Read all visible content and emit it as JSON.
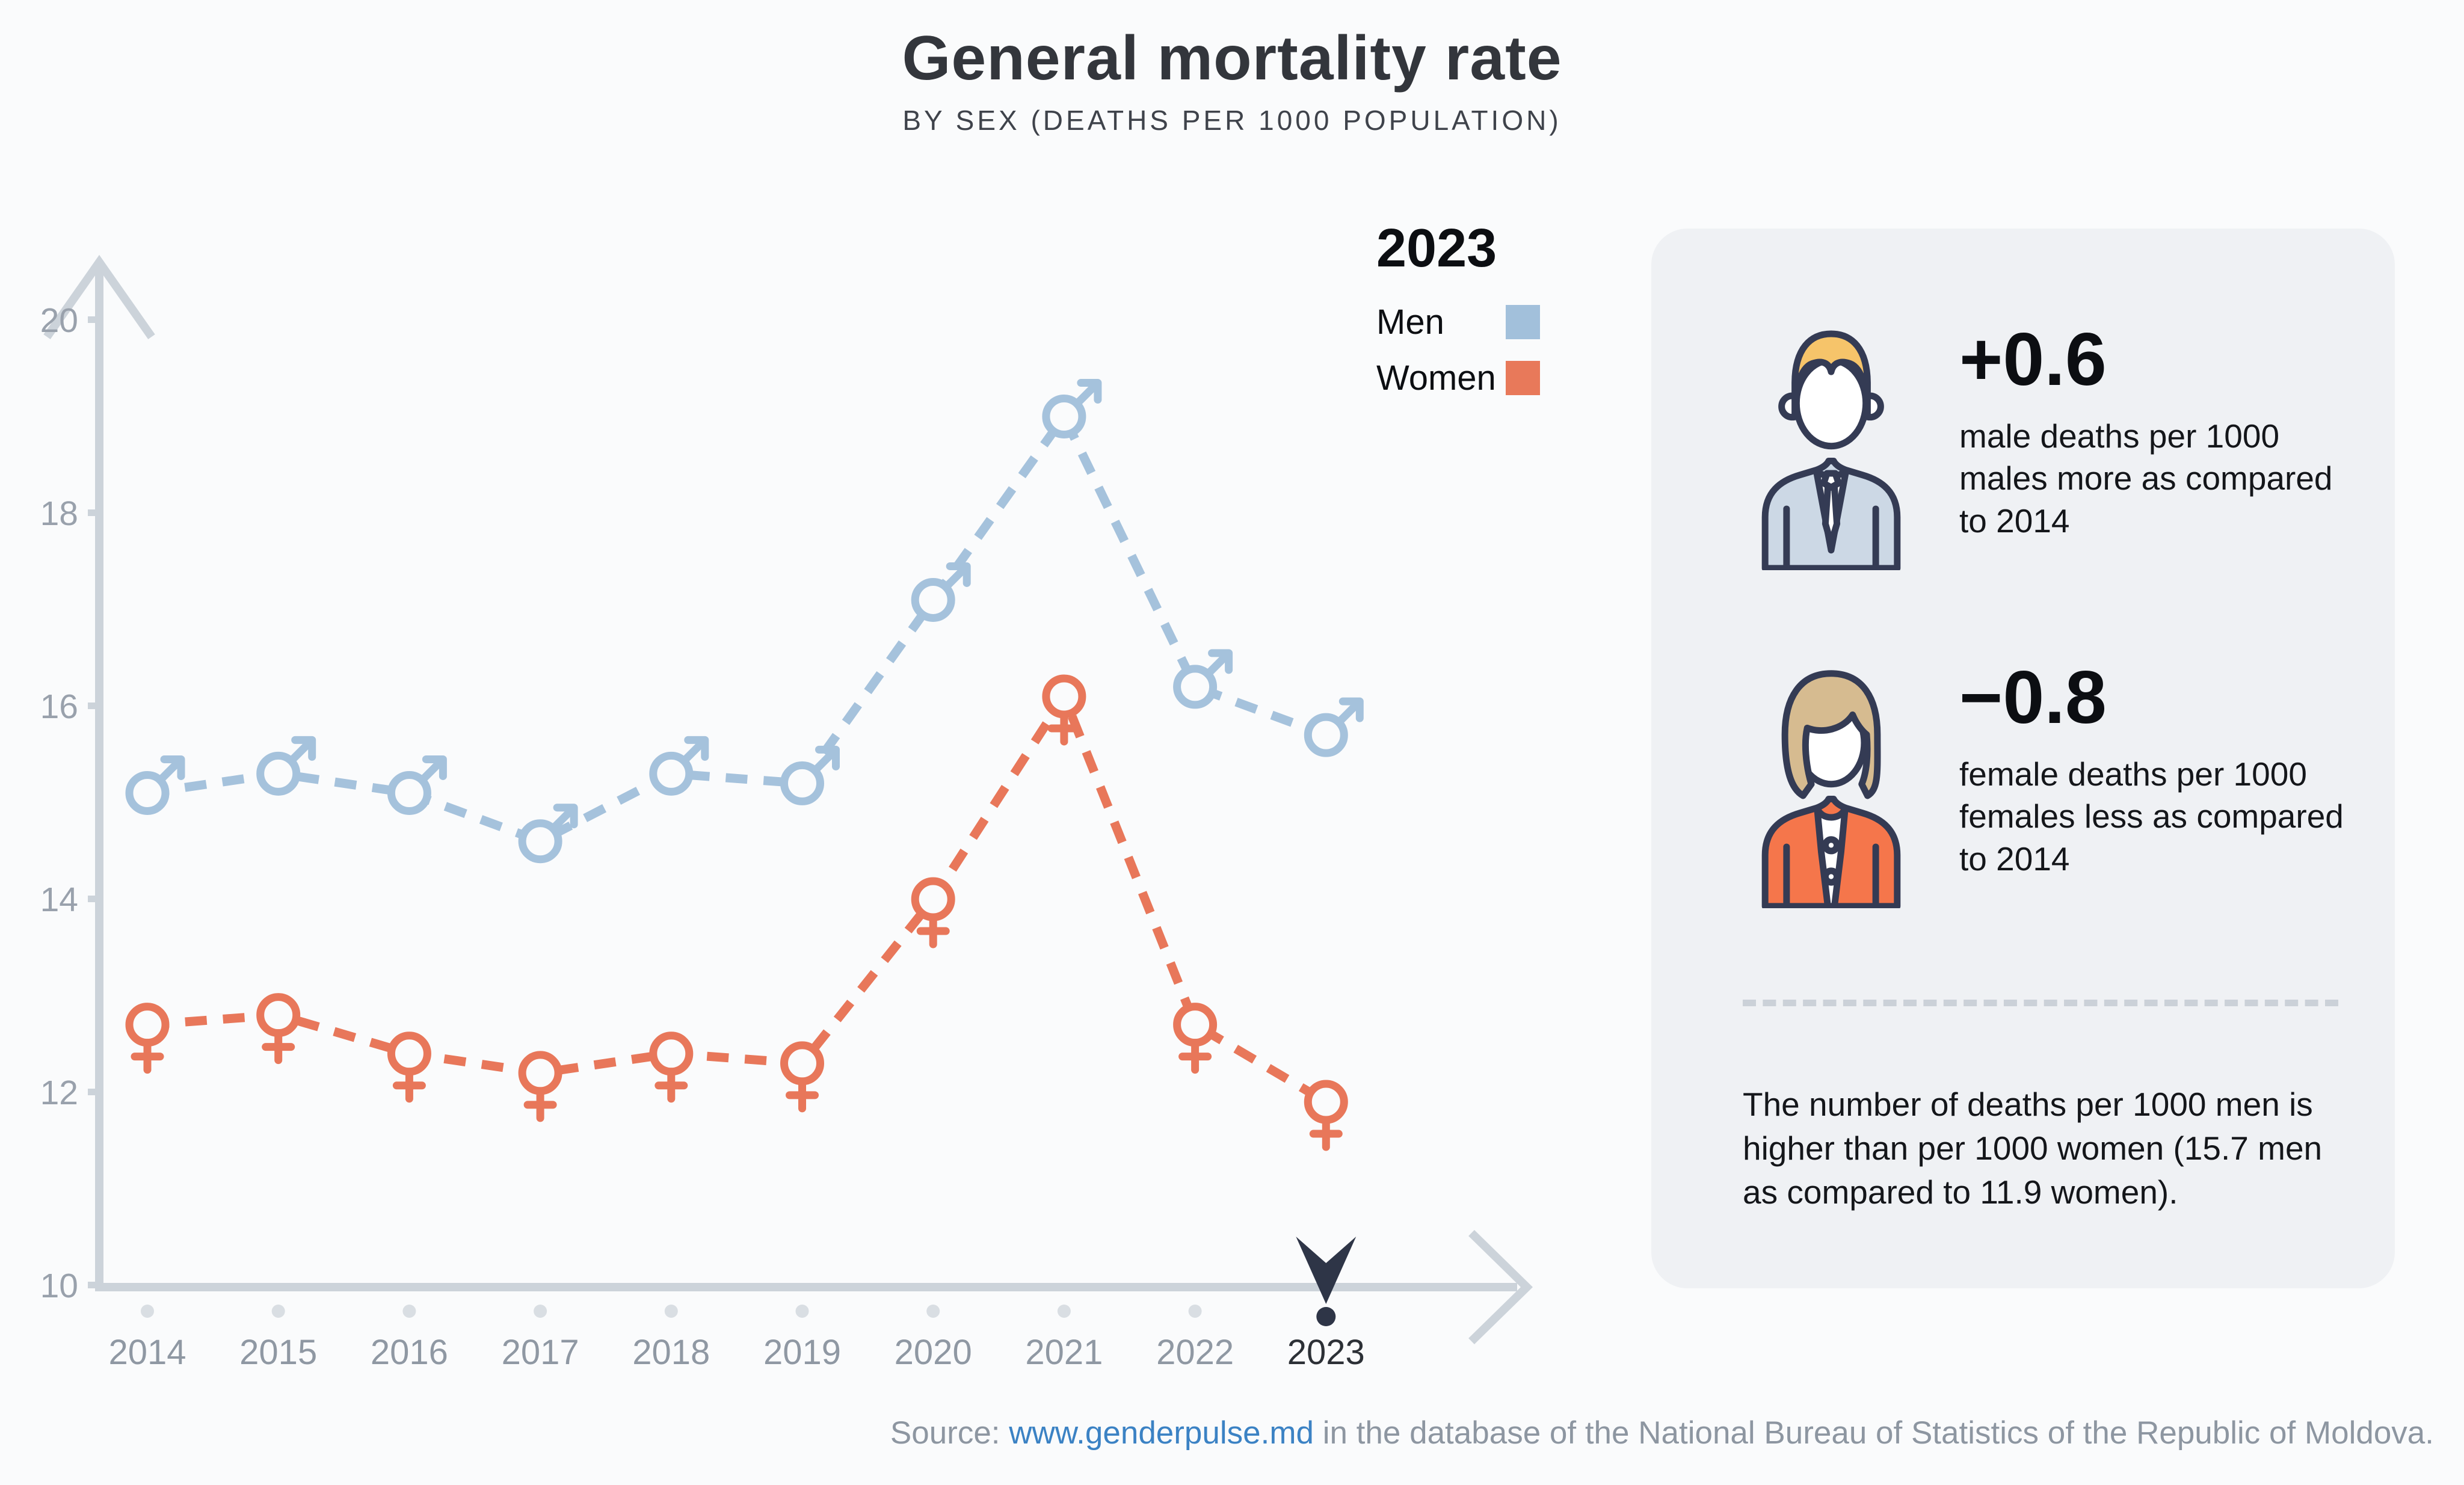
{
  "header": {
    "title": "General mortality rate",
    "subtitle": "BY SEX (DEATHS PER 1000 POPULATION)"
  },
  "legend": {
    "year": "2023",
    "men_label": "Men",
    "women_label": "Women",
    "men_color": "#a2c0db",
    "women_color": "#e8795a"
  },
  "chart_data": {
    "type": "line",
    "x": [
      2014,
      2015,
      2016,
      2017,
      2018,
      2019,
      2020,
      2021,
      2022,
      2023
    ],
    "series": [
      {
        "name": "Men",
        "marker": "male-symbol",
        "color": "#a5c2dc",
        "values": [
          15.1,
          15.3,
          15.1,
          14.6,
          15.3,
          15.2,
          17.1,
          19.0,
          16.2,
          15.7
        ]
      },
      {
        "name": "Women",
        "marker": "female-symbol",
        "color": "#e8775a",
        "values": [
          12.7,
          12.8,
          12.4,
          12.2,
          12.4,
          12.3,
          14.0,
          16.1,
          12.7,
          11.9
        ]
      }
    ],
    "title": "General mortality rate",
    "subtitle": "BY SEX (DEATHS PER 1000 POPULATION)",
    "xlabel": "",
    "ylabel": "",
    "ylim": [
      10,
      20
    ],
    "yticks": [
      10,
      12,
      14,
      16,
      18,
      20
    ],
    "grid": false,
    "line_style": "dashed",
    "legend_position": "top-right",
    "highlight_year": 2023
  },
  "stats_panel": {
    "male": {
      "value": "+0.6",
      "description": "male deaths per 1000 males more as compared to 2014"
    },
    "female": {
      "value": "−0.8",
      "description": "female deaths per 1000 females less as compared to 2014"
    },
    "summary": "The number of deaths per 1000 men is higher than per 1000 women (15.7 men as compared to 11.9 women)."
  },
  "source": {
    "prefix": "Source: ",
    "link_text": "www.genderpulse.md",
    "suffix": " in the database of the National Bureau of Statistics of the Republic of Moldova."
  },
  "colors": {
    "page_bg": "#fafbfc",
    "panel_bg": "#eff1f4",
    "axis": "#ccd3da",
    "tick_label": "#99a1ac",
    "year_label": "#8f98a3",
    "year_label_highlight": "#2c3036",
    "year_dot": "#d9dee3",
    "highlight_navy": "#2e3547",
    "marker_fill": "#fafbfc",
    "link": "#3b82c4"
  }
}
